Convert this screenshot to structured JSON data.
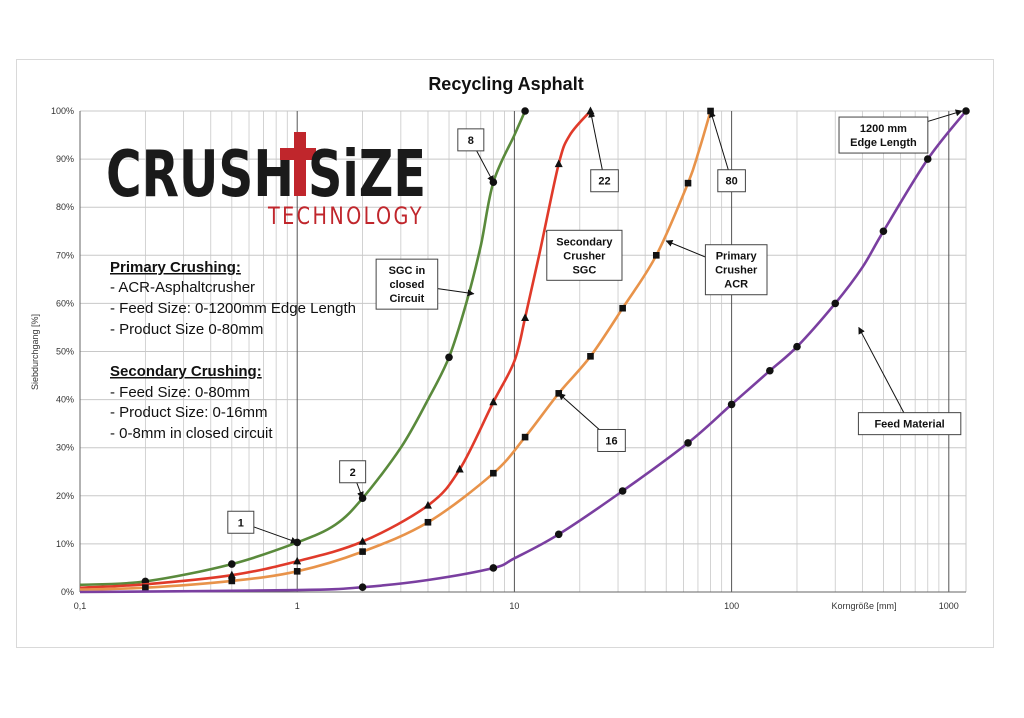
{
  "logo": {
    "name_left": "CRUSH",
    "name_right": "SiZE",
    "tagline": "TECHNOLOGY",
    "accent_color": "#c0262c"
  },
  "notes": {
    "primary_heading": "Primary Crushing:",
    "primary_items": [
      "- ACR-Asphaltcrusher",
      "- Feed Size: 0-1200mm Edge Length",
      "- Product Size 0-80mm"
    ],
    "secondary_heading": "Secondary Crushing:",
    "secondary_items": [
      "- Feed Size: 0-80mm",
      "- Product Size: 0-16mm",
      "- 0-8mm in closed circuit"
    ]
  },
  "chart_data": {
    "type": "line",
    "title": "Recycling Asphalt",
    "xlabel": "Korngröße [mm]",
    "ylabel": "Siebdurchgang [%]",
    "x_scale": "log",
    "xlim": [
      0.1,
      1200
    ],
    "ylim": [
      0,
      100
    ],
    "x_tick_labels": [
      {
        "value": 0.1,
        "label": "0,1"
      },
      {
        "value": 1,
        "label": "1"
      },
      {
        "value": 10,
        "label": "10"
      },
      {
        "value": 100,
        "label": "100"
      },
      {
        "value": 1000,
        "label": "1000"
      }
    ],
    "y_tick_labels": [
      "0%",
      "10%",
      "20%",
      "30%",
      "40%",
      "50%",
      "60%",
      "70%",
      "80%",
      "90%",
      "100%"
    ],
    "grid": true,
    "series": [
      {
        "color": "#5a8a3c",
        "marker": "circle",
        "line": [
          [
            0.1,
            1.5
          ],
          [
            0.2,
            2.2
          ],
          [
            0.5,
            5.8
          ],
          [
            1,
            10.3
          ],
          [
            1.5,
            14
          ],
          [
            2,
            19.5
          ],
          [
            3,
            30
          ],
          [
            4,
            40
          ],
          [
            5,
            48.8
          ],
          [
            6,
            60
          ],
          [
            7,
            72
          ],
          [
            8,
            85.2
          ],
          [
            10,
            95
          ],
          [
            11.2,
            100
          ]
        ],
        "markers": [
          [
            0.2,
            2.2
          ],
          [
            0.5,
            5.8
          ],
          [
            1,
            10.3
          ],
          [
            2,
            19.5
          ],
          [
            5,
            48.8
          ],
          [
            8,
            85.2
          ],
          [
            11.2,
            100
          ]
        ]
      },
      {
        "color": "#e03a2a",
        "marker": "triangle",
        "line": [
          [
            0.1,
            0.9
          ],
          [
            0.2,
            1.6
          ],
          [
            0.5,
            3.5
          ],
          [
            1,
            6.4
          ],
          [
            2,
            10.5
          ],
          [
            4,
            18
          ],
          [
            5.6,
            25.5
          ],
          [
            8,
            39.5
          ],
          [
            10,
            48
          ],
          [
            11.2,
            57
          ],
          [
            13,
            70
          ],
          [
            16,
            89
          ],
          [
            18,
            95
          ],
          [
            22.4,
            100
          ]
        ],
        "markers": [
          [
            0.5,
            3.5
          ],
          [
            1,
            6.4
          ],
          [
            2,
            10.5
          ],
          [
            4,
            18
          ],
          [
            5.6,
            25.5
          ],
          [
            8,
            39.5
          ],
          [
            11.2,
            57
          ],
          [
            16,
            89
          ],
          [
            22.4,
            100
          ]
        ]
      },
      {
        "color": "#e8934a",
        "marker": "square",
        "line": [
          [
            0.1,
            0.5
          ],
          [
            0.2,
            0.9
          ],
          [
            0.5,
            2.3
          ],
          [
            1,
            4.3
          ],
          [
            2,
            8.4
          ],
          [
            4,
            14.5
          ],
          [
            8,
            24.7
          ],
          [
            11.2,
            32.2
          ],
          [
            16,
            41.3
          ],
          [
            22.4,
            49
          ],
          [
            31.5,
            59
          ],
          [
            45,
            70
          ],
          [
            63,
            85
          ],
          [
            71,
            92
          ],
          [
            80,
            100
          ]
        ],
        "markers": [
          [
            0.2,
            0.9
          ],
          [
            0.5,
            2.3
          ],
          [
            1,
            4.3
          ],
          [
            2,
            8.4
          ],
          [
            4,
            14.5
          ],
          [
            8,
            24.7
          ],
          [
            11.2,
            32.2
          ],
          [
            16,
            41.3
          ],
          [
            22.4,
            49
          ],
          [
            31.5,
            59
          ],
          [
            45,
            70
          ],
          [
            63,
            85
          ],
          [
            80,
            100
          ]
        ]
      },
      {
        "color": "#7a3fa0",
        "marker": "circle",
        "line": [
          [
            0.1,
            0
          ],
          [
            1,
            0.4
          ],
          [
            2,
            1
          ],
          [
            4,
            2.5
          ],
          [
            8,
            5
          ],
          [
            10,
            7
          ],
          [
            16,
            12
          ],
          [
            31.5,
            21
          ],
          [
            63,
            31
          ],
          [
            100,
            39
          ],
          [
            150,
            46
          ],
          [
            200,
            51
          ],
          [
            300,
            60
          ],
          [
            400,
            67.5
          ],
          [
            500,
            75
          ],
          [
            800,
            90
          ],
          [
            1200,
            100
          ]
        ],
        "markers": [
          [
            2,
            1
          ],
          [
            8,
            5
          ],
          [
            16,
            12
          ],
          [
            31.5,
            21
          ],
          [
            63,
            31
          ],
          [
            100,
            39
          ],
          [
            150,
            46
          ],
          [
            200,
            51
          ],
          [
            300,
            60
          ],
          [
            500,
            75
          ],
          [
            800,
            90
          ],
          [
            1200,
            100
          ]
        ]
      }
    ],
    "annotations": [
      {
        "text": "1",
        "target": [
          1,
          10.3
        ],
        "box": [
          0.55,
          14.5
        ]
      },
      {
        "text": "2",
        "target": [
          2,
          19.5
        ],
        "box": [
          1.8,
          25
        ]
      },
      {
        "text": "8",
        "target": [
          8,
          85.2
        ],
        "box": [
          6.3,
          94
        ]
      },
      {
        "text": "22",
        "target": [
          22.4,
          100
        ],
        "box": [
          26,
          85.5
        ]
      },
      {
        "text": "80",
        "target": [
          80,
          100
        ],
        "box": [
          100,
          85.5
        ]
      },
      {
        "text": "16",
        "target": [
          16,
          41.3
        ],
        "box": [
          28,
          31.5
        ]
      },
      {
        "text": "SGC in\nclosed\nCircuit",
        "target": [
          6.5,
          62
        ],
        "box": [
          3.2,
          64
        ]
      },
      {
        "text": "Secondary\nCrusher\nSGC",
        "target": [
          14,
          75
        ],
        "box": [
          21,
          70
        ]
      },
      {
        "text": "Primary\nCrusher\nACR",
        "target": [
          50,
          73
        ],
        "box": [
          105,
          67
        ]
      },
      {
        "text": "1200 mm\nEdge Length",
        "target": [
          1150,
          100
        ],
        "box": [
          500,
          95
        ]
      },
      {
        "text": "Feed Material",
        "target": [
          385,
          55
        ],
        "box": [
          660,
          35
        ]
      }
    ]
  }
}
